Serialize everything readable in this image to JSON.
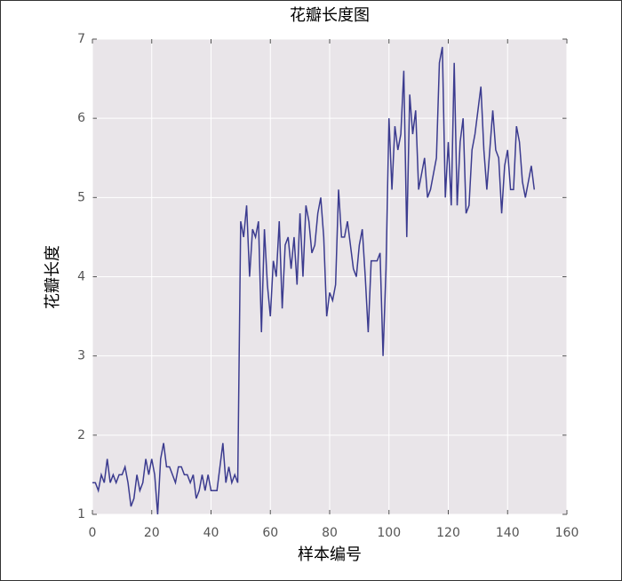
{
  "chart_data": {
    "type": "line",
    "title": "花瓣长度图",
    "xlabel": "样本编号",
    "ylabel": "花瓣长度",
    "x": [
      0,
      1,
      2,
      3,
      4,
      5,
      6,
      7,
      8,
      9,
      10,
      11,
      12,
      13,
      14,
      15,
      16,
      17,
      18,
      19,
      20,
      21,
      22,
      23,
      24,
      25,
      26,
      27,
      28,
      29,
      30,
      31,
      32,
      33,
      34,
      35,
      36,
      37,
      38,
      39,
      40,
      41,
      42,
      43,
      44,
      45,
      46,
      47,
      48,
      49,
      50,
      51,
      52,
      53,
      54,
      55,
      56,
      57,
      58,
      59,
      60,
      61,
      62,
      63,
      64,
      65,
      66,
      67,
      68,
      69,
      70,
      71,
      72,
      73,
      74,
      75,
      76,
      77,
      78,
      79,
      80,
      81,
      82,
      83,
      84,
      85,
      86,
      87,
      88,
      89,
      90,
      91,
      92,
      93,
      94,
      95,
      96,
      97,
      98,
      99,
      100,
      101,
      102,
      103,
      104,
      105,
      106,
      107,
      108,
      109,
      110,
      111,
      112,
      113,
      114,
      115,
      116,
      117,
      118,
      119,
      120,
      121,
      122,
      123,
      124,
      125,
      126,
      127,
      128,
      129,
      130,
      131,
      132,
      133,
      134,
      135,
      136,
      137,
      138,
      139,
      140,
      141,
      142,
      143,
      144,
      145,
      146,
      147,
      148,
      149
    ],
    "series": [
      {
        "name": "花瓣长度",
        "color": "#3b3b8f",
        "values": [
          1.4,
          1.4,
          1.3,
          1.5,
          1.4,
          1.7,
          1.4,
          1.5,
          1.4,
          1.5,
          1.5,
          1.6,
          1.4,
          1.1,
          1.2,
          1.5,
          1.3,
          1.4,
          1.7,
          1.5,
          1.7,
          1.5,
          1.0,
          1.7,
          1.9,
          1.6,
          1.6,
          1.5,
          1.4,
          1.6,
          1.6,
          1.5,
          1.5,
          1.4,
          1.5,
          1.2,
          1.3,
          1.5,
          1.3,
          1.5,
          1.3,
          1.3,
          1.3,
          1.6,
          1.9,
          1.4,
          1.6,
          1.4,
          1.5,
          1.4,
          4.7,
          4.5,
          4.9,
          4.0,
          4.6,
          4.5,
          4.7,
          3.3,
          4.6,
          3.9,
          3.5,
          4.2,
          4.0,
          4.7,
          3.6,
          4.4,
          4.5,
          4.1,
          4.5,
          3.9,
          4.8,
          4.0,
          4.9,
          4.7,
          4.3,
          4.4,
          4.8,
          5.0,
          4.5,
          3.5,
          3.8,
          3.7,
          3.9,
          5.1,
          4.5,
          4.5,
          4.7,
          4.4,
          4.1,
          4.0,
          4.4,
          4.6,
          4.0,
          3.3,
          4.2,
          4.2,
          4.2,
          4.3,
          3.0,
          4.1,
          6.0,
          5.1,
          5.9,
          5.6,
          5.8,
          6.6,
          4.5,
          6.3,
          5.8,
          6.1,
          5.1,
          5.3,
          5.5,
          5.0,
          5.1,
          5.3,
          5.5,
          6.7,
          6.9,
          5.0,
          5.7,
          4.9,
          6.7,
          4.9,
          5.7,
          6.0,
          4.8,
          4.9,
          5.6,
          5.8,
          6.1,
          6.4,
          5.6,
          5.1,
          5.6,
          6.1,
          5.6,
          5.5,
          4.8,
          5.4,
          5.6,
          5.1,
          5.1,
          5.9,
          5.7,
          5.2,
          5.0,
          5.2,
          5.4,
          5.1
        ]
      }
    ],
    "xlim": [
      0,
      160
    ],
    "xticks": [
      0,
      20,
      40,
      60,
      80,
      100,
      120,
      140,
      160
    ],
    "ylim": [
      1,
      7
    ],
    "yticks": [
      1,
      2,
      3,
      4,
      5,
      6,
      7
    ],
    "grid": true,
    "background": "#e9e5e9"
  }
}
